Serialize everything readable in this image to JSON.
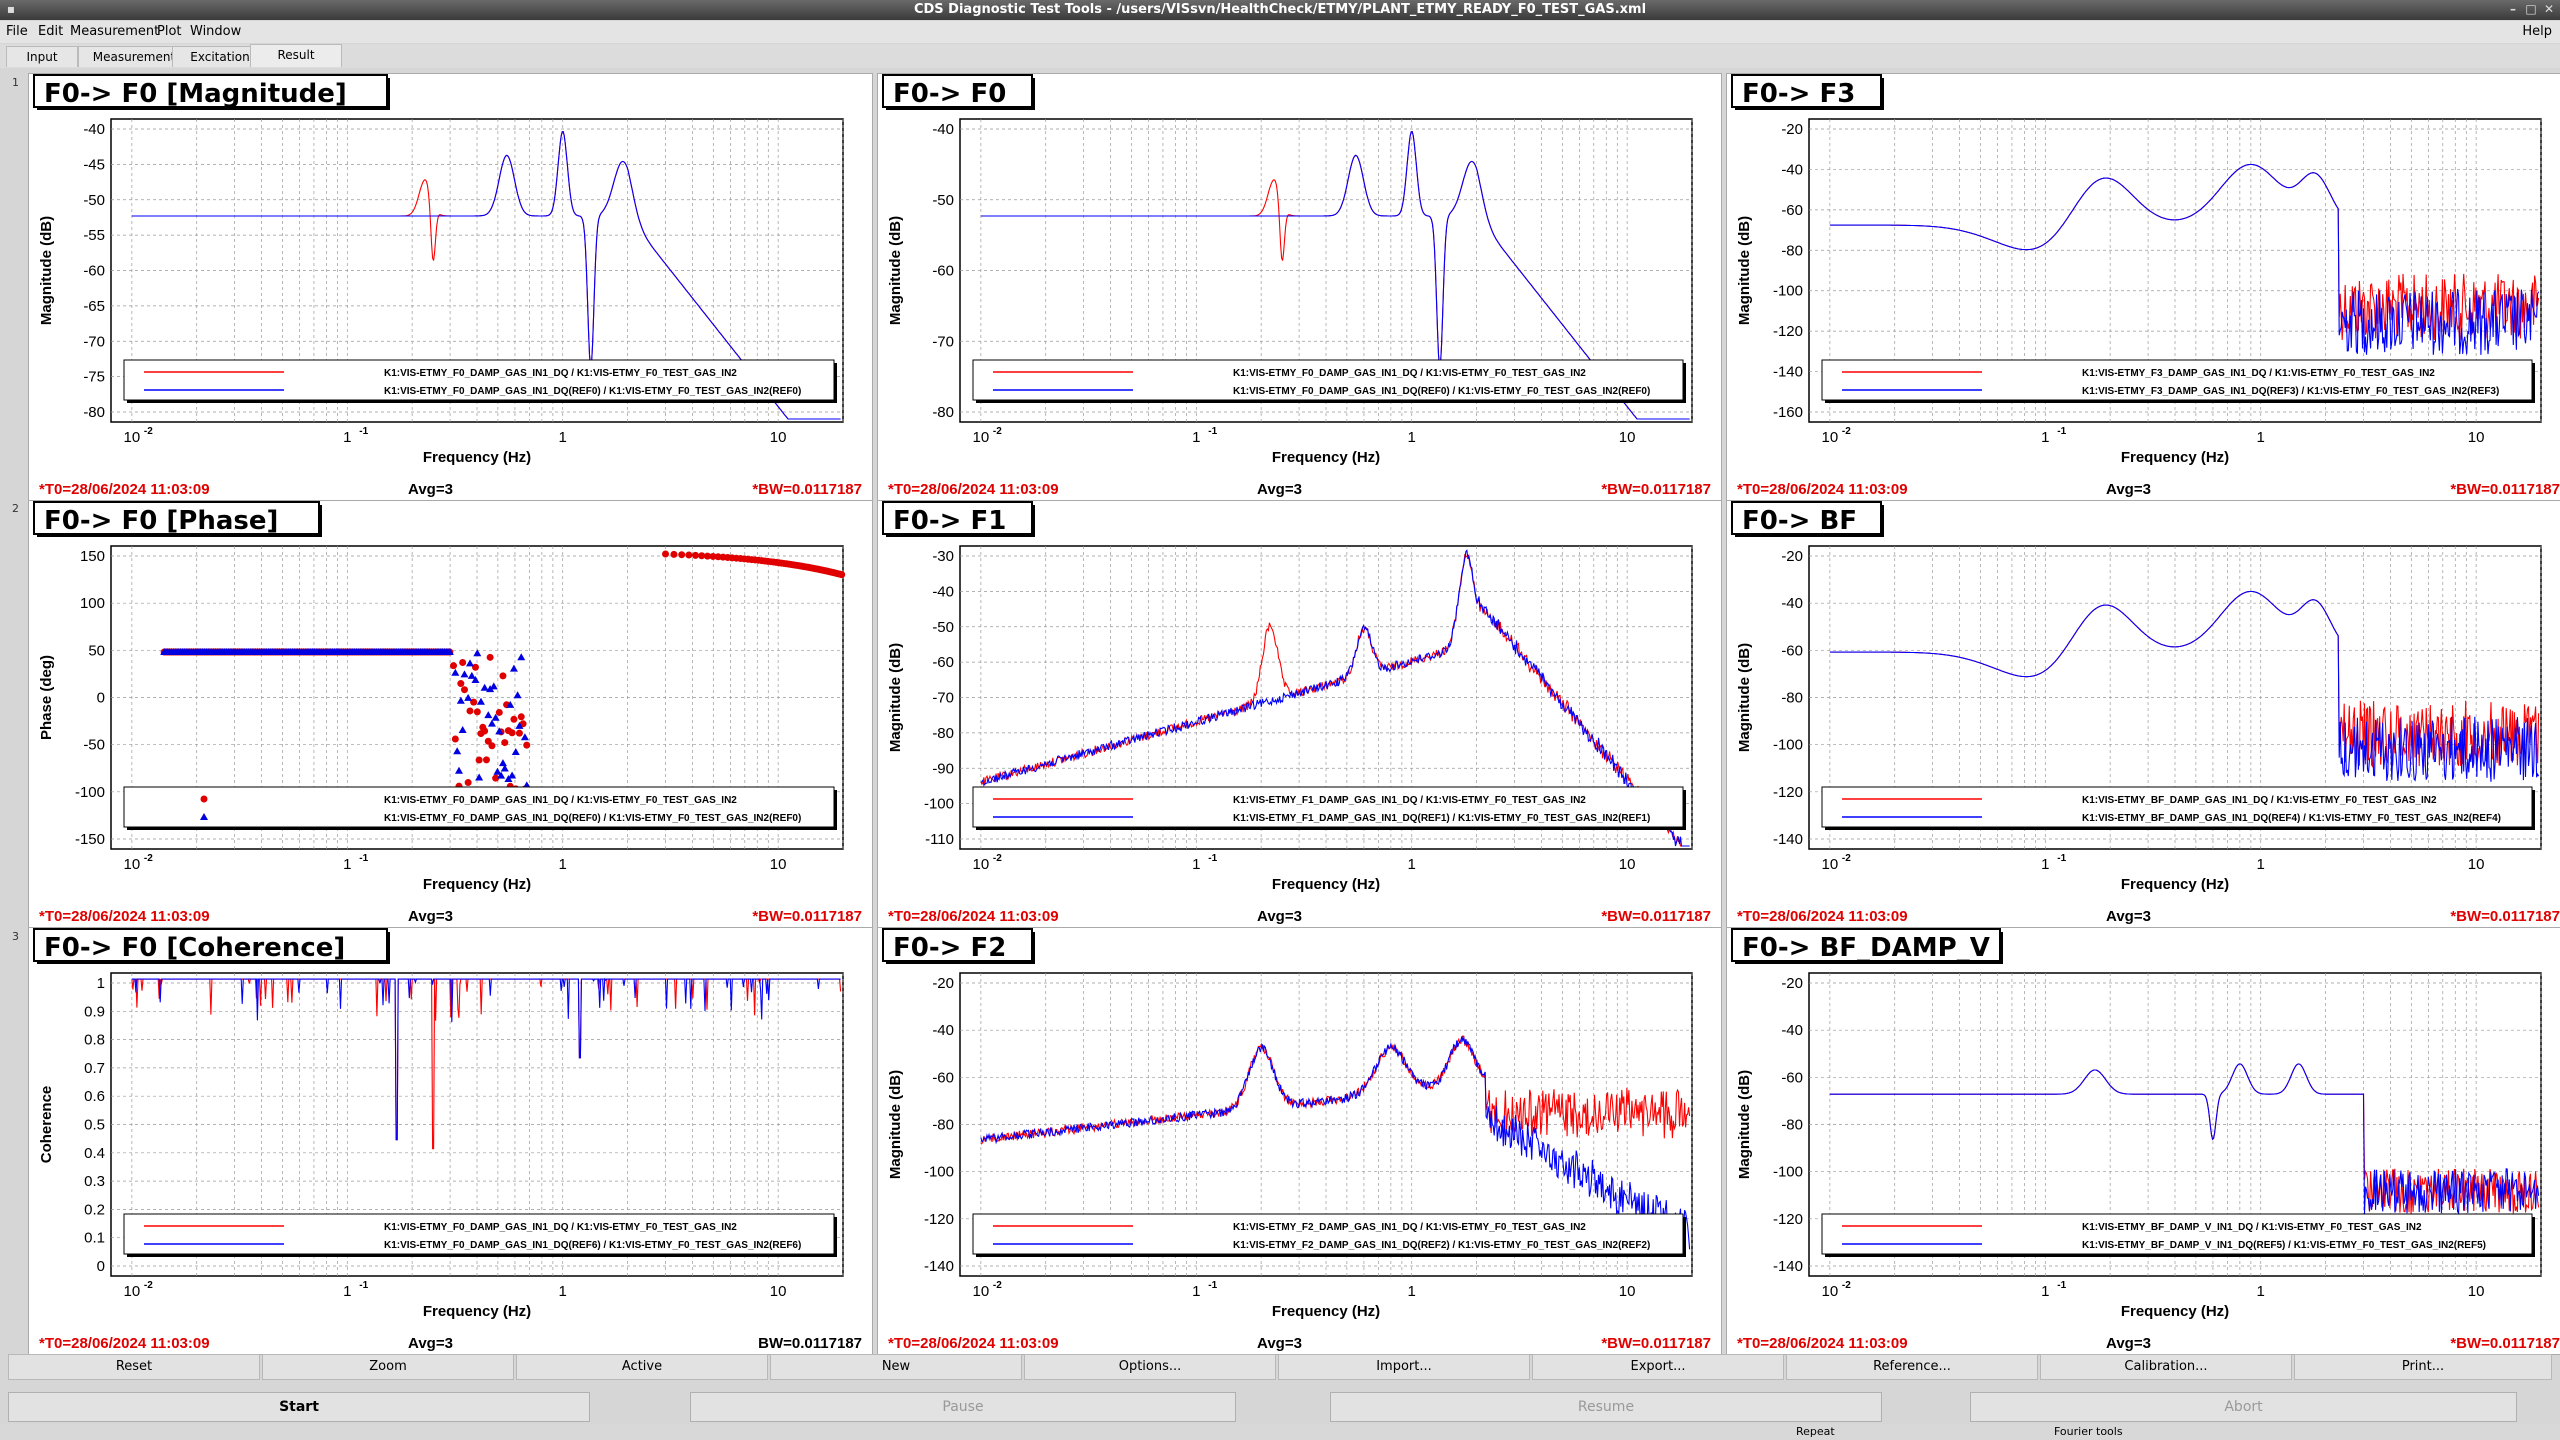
{
  "window": {
    "title": "CDS Diagnostic Test Tools - /users/VISsvn/HealthCheck/ETMY/PLANT_ETMY_READY_F0_TEST_GAS.xml"
  },
  "menu": {
    "items": [
      "File",
      "Edit",
      "Measurement",
      "Plot",
      "Window"
    ],
    "help": "Help"
  },
  "tabs": [
    "Input",
    "Measurement",
    "Excitation",
    "Result"
  ],
  "side_numbers": [
    "1",
    "2",
    "3"
  ],
  "footer_common": {
    "t0": "*T0=28/06/2024 11:03:09",
    "avg": "Avg=3",
    "bw_star": "*BW=0.0117187",
    "bw_plain": "BW=0.0117187"
  },
  "x_ticks": [
    "10",
    "1",
    "10",
    "10"
  ],
  "x_tick_exp": [
    "-2",
    "-1",
    "",
    ""
  ],
  "xlabel": "Frequency (Hz)",
  "colors": {
    "red": "#ff0000",
    "blue": "#0000ff"
  },
  "panels": [
    {
      "title": "F0-> F0 [Magnitude]",
      "ylabel": "Magnitude (dB)",
      "yticks": [
        "-40",
        "-45",
        "-50",
        "-55",
        "-60",
        "-65",
        "-70",
        "-75",
        "-80"
      ],
      "legend": [
        "K1:VIS-ETMY_F0_DAMP_GAS_IN1_DQ / K1:VIS-ETMY_F0_TEST_GAS_IN2",
        "K1:VIS-ETMY_F0_DAMP_GAS_IN1_DQ(REF0) / K1:VIS-ETMY_F0_TEST_GAS_IN2(REF0)"
      ]
    },
    {
      "title": "F0-> F0",
      "ylabel": "Magnitude (dB)",
      "yticks": [
        "-40",
        "-50",
        "-60",
        "-70",
        "-80"
      ],
      "legend": [
        "K1:VIS-ETMY_F0_DAMP_GAS_IN1_DQ / K1:VIS-ETMY_F0_TEST_GAS_IN2",
        "K1:VIS-ETMY_F0_DAMP_GAS_IN1_DQ(REF0) / K1:VIS-ETMY_F0_TEST_GAS_IN2(REF0)"
      ]
    },
    {
      "title": "F0-> F3",
      "ylabel": "Magnitude (dB)",
      "yticks": [
        "-20",
        "-40",
        "-60",
        "-80",
        "-100",
        "-120",
        "-140",
        "-160"
      ],
      "legend": [
        "K1:VIS-ETMY_F3_DAMP_GAS_IN1_DQ / K1:VIS-ETMY_F0_TEST_GAS_IN2",
        "K1:VIS-ETMY_F3_DAMP_GAS_IN1_DQ(REF3) / K1:VIS-ETMY_F0_TEST_GAS_IN2(REF3)"
      ]
    },
    {
      "title": "F0-> F0 [Phase]",
      "ylabel": "Phase (deg)",
      "yticks": [
        "150",
        "100",
        "50",
        "0",
        "-50",
        "-100",
        "-150"
      ],
      "legend": [
        "K1:VIS-ETMY_F0_DAMP_GAS_IN1_DQ / K1:VIS-ETMY_F0_TEST_GAS_IN2",
        "K1:VIS-ETMY_F0_DAMP_GAS_IN1_DQ(REF0) / K1:VIS-ETMY_F0_TEST_GAS_IN2(REF0)"
      ]
    },
    {
      "title": "F0-> F1",
      "ylabel": "Magnitude (dB)",
      "yticks": [
        "-30",
        "-40",
        "-50",
        "-60",
        "-70",
        "-80",
        "-90",
        "-100",
        "-110"
      ],
      "legend": [
        "K1:VIS-ETMY_F1_DAMP_GAS_IN1_DQ / K1:VIS-ETMY_F0_TEST_GAS_IN2",
        "K1:VIS-ETMY_F1_DAMP_GAS_IN1_DQ(REF1) / K1:VIS-ETMY_F0_TEST_GAS_IN2(REF1)"
      ]
    },
    {
      "title": "F0-> BF",
      "ylabel": "Magnitude (dB)",
      "yticks": [
        "-20",
        "-40",
        "-60",
        "-80",
        "-100",
        "-120",
        "-140"
      ],
      "legend": [
        "K1:VIS-ETMY_BF_DAMP_GAS_IN1_DQ / K1:VIS-ETMY_F0_TEST_GAS_IN2",
        "K1:VIS-ETMY_BF_DAMP_GAS_IN1_DQ(REF4) / K1:VIS-ETMY_F0_TEST_GAS_IN2(REF4)"
      ]
    },
    {
      "title": "F0-> F0 [Coherence]",
      "ylabel": "Coherence",
      "yticks": [
        "1",
        "0.9",
        "0.8",
        "0.7",
        "0.6",
        "0.5",
        "0.4",
        "0.3",
        "0.2",
        "0.1",
        "0"
      ],
      "legend": [
        "K1:VIS-ETMY_F0_DAMP_GAS_IN1_DQ / K1:VIS-ETMY_F0_TEST_GAS_IN2",
        "K1:VIS-ETMY_F0_DAMP_GAS_IN1_DQ(REF6) / K1:VIS-ETMY_F0_TEST_GAS_IN2(REF6)"
      ]
    },
    {
      "title": "F0-> F2",
      "ylabel": "Magnitude (dB)",
      "yticks": [
        "-20",
        "-40",
        "-60",
        "-80",
        "-100",
        "-120",
        "-140"
      ],
      "legend": [
        "K1:VIS-ETMY_F2_DAMP_GAS_IN1_DQ / K1:VIS-ETMY_F0_TEST_GAS_IN2",
        "K1:VIS-ETMY_F2_DAMP_GAS_IN1_DQ(REF2) / K1:VIS-ETMY_F0_TEST_GAS_IN2(REF2)"
      ]
    },
    {
      "title": "F0-> BF_DAMP_V",
      "ylabel": "Magnitude (dB)",
      "yticks": [
        "-20",
        "-40",
        "-60",
        "-80",
        "-100",
        "-120",
        "-140"
      ],
      "legend": [
        "K1:VIS-ETMY_BF_DAMP_V_IN1_DQ / K1:VIS-ETMY_F0_TEST_GAS_IN2",
        "K1:VIS-ETMY_BF_DAMP_V_IN1_DQ(REF5) / K1:VIS-ETMY_F0_TEST_GAS_IN2(REF5)"
      ]
    }
  ],
  "buttons_row1": [
    "Reset",
    "Zoom",
    "Active",
    "New",
    "Options...",
    "Import...",
    "Export...",
    "Reference...",
    "Calibration...",
    "Print..."
  ],
  "buttons_row2": [
    "Start",
    "Pause",
    "Resume",
    "Abort"
  ],
  "status": {
    "repeat": "Repeat",
    "fourier": "Fourier tools"
  }
}
